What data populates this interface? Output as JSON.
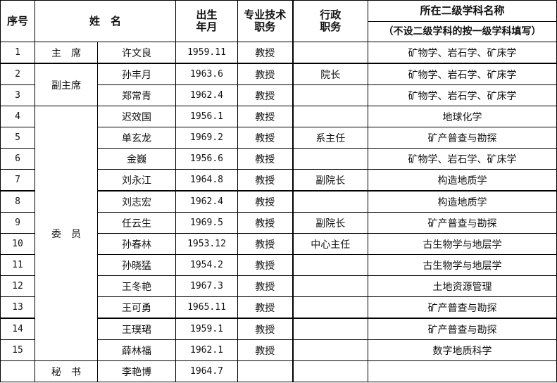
{
  "header": {
    "seq": "序号",
    "name": "姓　名",
    "birth": "出生\n年月",
    "title": "专业技术\n职务",
    "admin": "行政\n职务",
    "subject": "所在二级学科名称",
    "subject_note": "（不设二级学科的按一级学科填写）"
  },
  "roles": {
    "chair": "主　席",
    "vice": "副主席",
    "member": "委　员",
    "secretary": "秘　书"
  },
  "rows": [
    {
      "no": "1",
      "name": "许文良",
      "birth": "1959.11",
      "title": "教授",
      "admin": "",
      "subject": "矿物学、岩石学、矿床学"
    },
    {
      "no": "2",
      "name": "孙丰月",
      "birth": "1963.6",
      "title": "教授",
      "admin": "院长",
      "subject": "矿物学、岩石学、矿床学"
    },
    {
      "no": "3",
      "name": "郑常青",
      "birth": "1962.4",
      "title": "教授",
      "admin": "",
      "subject": "矿物学、岩石学、矿床学"
    },
    {
      "no": "4",
      "name": "迟效国",
      "birth": "1956.1",
      "title": "教授",
      "admin": "",
      "subject": "地球化学"
    },
    {
      "no": "5",
      "name": "单玄龙",
      "birth": "1969.2",
      "title": "教授",
      "admin": "系主任",
      "subject": "矿产普查与勘探"
    },
    {
      "no": "6",
      "name": "金巍",
      "birth": "1956.6",
      "title": "教授",
      "admin": "",
      "subject": "矿物学、岩石学、矿床学"
    },
    {
      "no": "7",
      "name": "刘永江",
      "birth": "1964.8",
      "title": "教授",
      "admin": "副院长",
      "subject": "构造地质学"
    },
    {
      "no": "8",
      "name": "刘志宏",
      "birth": "1962.4",
      "title": "教授",
      "admin": "",
      "subject": "构造地质学"
    },
    {
      "no": "9",
      "name": "任云生",
      "birth": "1969.5",
      "title": "教授",
      "admin": "副院长",
      "subject": "矿产普查与勘探"
    },
    {
      "no": "10",
      "name": "孙春林",
      "birth": "1953.12",
      "title": "教授",
      "admin": "中心主任",
      "subject": "古生物学与地层学"
    },
    {
      "no": "11",
      "name": "孙晓猛",
      "birth": "1954.2",
      "title": "教授",
      "admin": "",
      "subject": "古生物学与地层学"
    },
    {
      "no": "12",
      "name": "王冬艳",
      "birth": "1967.3",
      "title": "教授",
      "admin": "",
      "subject": "土地资源管理"
    },
    {
      "no": "13",
      "name": "王可勇",
      "birth": "1965.11",
      "title": "教授",
      "admin": "",
      "subject": "矿产普查与勘探"
    },
    {
      "no": "14",
      "name": "王璞珺",
      "birth": "1959.1",
      "title": "教授",
      "admin": "",
      "subject": "矿产普查与勘探"
    },
    {
      "no": "15",
      "name": "薛林福",
      "birth": "1962.1",
      "title": "教授",
      "admin": "",
      "subject": "数字地质科学"
    },
    {
      "no": "",
      "name": "李艳博",
      "birth": "1964.7",
      "title": "",
      "admin": "",
      "subject": ""
    }
  ]
}
